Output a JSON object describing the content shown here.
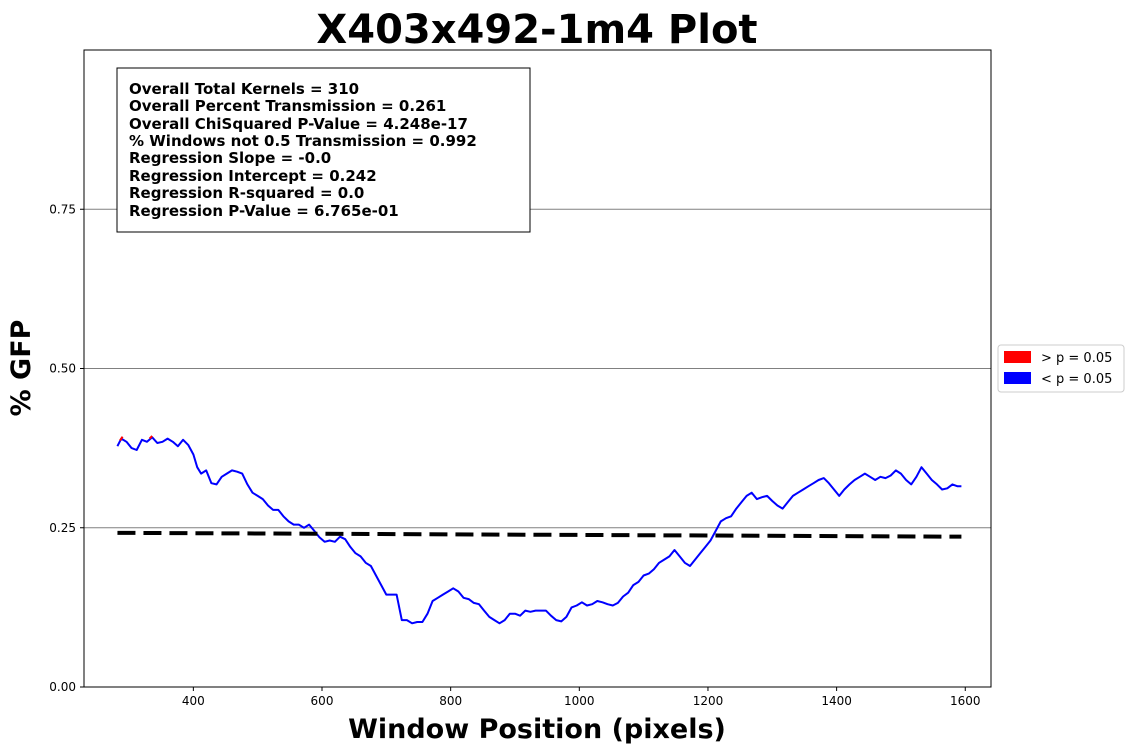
{
  "chart_data": {
    "type": "line",
    "title": "X403x492-1m4 Plot",
    "xlabel": "Window Position (pixels)",
    "ylabel": "% GFP",
    "xlim": [
      230,
      1640
    ],
    "ylim": [
      0,
      1.0
    ],
    "x_ticks": [
      400,
      600,
      800,
      1000,
      1200,
      1400,
      1600
    ],
    "x_tick_labels": [
      "400",
      "600",
      "800",
      "1000",
      "1200",
      "1400",
      "1600"
    ],
    "y_ticks": [
      0,
      0.25,
      0.5,
      0.75
    ],
    "y_tick_labels": [
      "0.00",
      "0.25",
      "0.50",
      "0.75"
    ],
    "grid": "horizontal",
    "colors": {
      "significant": "#0000ff",
      "not_significant": "#ff0000",
      "regression": "#000000",
      "grid": "#808080"
    },
    "stats": [
      "Overall Total Kernels = 310",
      "Overall Percent Transmission = 0.261",
      "Overall ChiSquared P-Value = 4.248e-17",
      "% Windows not 0.5 Transmission = 0.992",
      "Regression Slope = -0.0",
      "Regression Intercept = 0.242",
      "Regression R-squared = 0.0",
      "Regression P-Value = 6.765e-01"
    ],
    "legend": {
      "placement": "outside-right",
      "entries": [
        {
          "label": "> p = 0.05",
          "color": "#ff0000"
        },
        {
          "label": "< p = 0.05",
          "color": "#0000ff"
        }
      ]
    },
    "series": [
      {
        "color": "#0000ff",
        "x": [
          282,
          288,
          296,
          304,
          312,
          320,
          328,
          336,
          344,
          352,
          360,
          368,
          376,
          384,
          392,
          400,
          406,
          412,
          420,
          428,
          436,
          444,
          452,
          460,
          468,
          476,
          484,
          492,
          500,
          508,
          516,
          524,
          532,
          540,
          548,
          556,
          564,
          572,
          580,
          588,
          596,
          604,
          612,
          620,
          628,
          636,
          644,
          652,
          660,
          668,
          676,
          684,
          692,
          700,
          708,
          716,
          724,
          732,
          740,
          748,
          756,
          764,
          772,
          780,
          788,
          796,
          804,
          812,
          820,
          828,
          836,
          844,
          852,
          860,
          868,
          876,
          884,
          892,
          900,
          908,
          916,
          924,
          932,
          940,
          948,
          956,
          964,
          972,
          980,
          988,
          996,
          1004,
          1012,
          1020,
          1028,
          1036,
          1044,
          1052,
          1060,
          1068,
          1076,
          1084,
          1092,
          1100,
          1108,
          1116,
          1124,
          1132,
          1140,
          1148,
          1156,
          1164,
          1172,
          1180,
          1188,
          1196,
          1204,
          1212,
          1220,
          1228,
          1236,
          1244,
          1252,
          1260,
          1268,
          1276,
          1284,
          1292,
          1300,
          1308,
          1316,
          1324,
          1332,
          1340,
          1348,
          1356,
          1364,
          1372,
          1380,
          1388,
          1396,
          1404,
          1412,
          1420,
          1428,
          1436,
          1444,
          1452,
          1460,
          1468,
          1476,
          1484,
          1492,
          1500,
          1508,
          1516,
          1524,
          1532,
          1540,
          1548,
          1556,
          1564,
          1572,
          1580,
          1588,
          1594
        ],
        "y": [
          0.378,
          0.39,
          0.385,
          0.375,
          0.372,
          0.388,
          0.385,
          0.392,
          0.383,
          0.385,
          0.39,
          0.385,
          0.378,
          0.388,
          0.38,
          0.365,
          0.345,
          0.335,
          0.34,
          0.32,
          0.318,
          0.33,
          0.335,
          0.34,
          0.338,
          0.335,
          0.318,
          0.305,
          0.3,
          0.295,
          0.285,
          0.278,
          0.278,
          0.268,
          0.26,
          0.255,
          0.255,
          0.25,
          0.255,
          0.245,
          0.235,
          0.228,
          0.23,
          0.228,
          0.236,
          0.232,
          0.22,
          0.21,
          0.205,
          0.195,
          0.19,
          0.175,
          0.16,
          0.145,
          0.145,
          0.145,
          0.105,
          0.105,
          0.1,
          0.102,
          0.102,
          0.115,
          0.135,
          0.14,
          0.145,
          0.15,
          0.155,
          0.15,
          0.14,
          0.138,
          0.132,
          0.13,
          0.12,
          0.11,
          0.105,
          0.1,
          0.105,
          0.115,
          0.115,
          0.112,
          0.12,
          0.118,
          0.12,
          0.12,
          0.12,
          0.112,
          0.105,
          0.103,
          0.11,
          0.125,
          0.128,
          0.133,
          0.128,
          0.13,
          0.135,
          0.133,
          0.13,
          0.128,
          0.132,
          0.142,
          0.148,
          0.16,
          0.165,
          0.175,
          0.178,
          0.185,
          0.195,
          0.2,
          0.205,
          0.215,
          0.205,
          0.195,
          0.19,
          0.2,
          0.21,
          0.22,
          0.23,
          0.245,
          0.26,
          0.265,
          0.268,
          0.28,
          0.29,
          0.3,
          0.305,
          0.295,
          0.298,
          0.3,
          0.292,
          0.285,
          0.28,
          0.29,
          0.3,
          0.305,
          0.31,
          0.315,
          0.32,
          0.325,
          0.328,
          0.32,
          0.31,
          0.3,
          0.31,
          0.318,
          0.325,
          0.33,
          0.335,
          0.33,
          0.325,
          0.33,
          0.328,
          0.332,
          0.34,
          0.335,
          0.325,
          0.318,
          0.33,
          0.345,
          0.335,
          0.325,
          0.318,
          0.31,
          0.312,
          0.318,
          0.315,
          0.315
        ]
      },
      {
        "color": "#ff0000",
        "x": [
          286,
          290
        ],
        "y": [
          0.387,
          0.393
        ]
      },
      {
        "color": "#ff0000",
        "x": [
          332,
          336
        ],
        "y": [
          0.39,
          0.394
        ]
      }
    ],
    "regression": {
      "x": [
        282,
        1594
      ],
      "y": [
        0.242,
        0.236
      ]
    }
  }
}
